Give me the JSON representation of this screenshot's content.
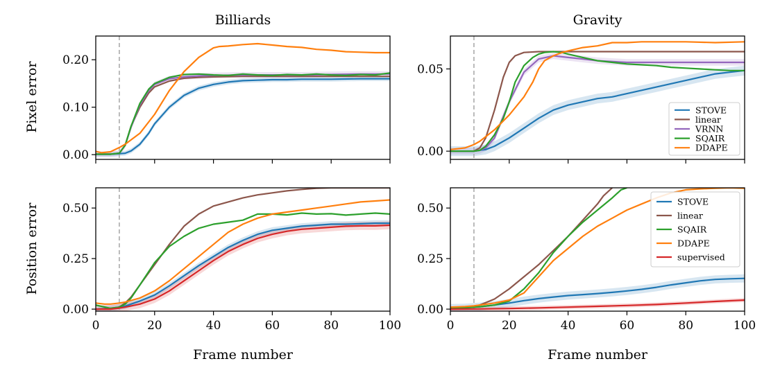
{
  "figure": {
    "col_titles": [
      "Billiards",
      "Gravity"
    ],
    "xlabel": "Frame number",
    "ylabels": [
      "Pixel error",
      "Position error"
    ]
  },
  "colors": {
    "STOVE": "#1f77b4",
    "linear": "#8c564b",
    "VRNN": "#9467bd",
    "SQAIR": "#2ca02c",
    "DDAPE": "#ff7f0e",
    "supervised": "#d62728",
    "marker": "#aaaaaa"
  },
  "chart_data": [
    {
      "id": "billiards-pixel",
      "type": "line",
      "title": "Billiards",
      "xlabel": "",
      "ylabel": "Pixel error",
      "xlim": [
        0,
        100
      ],
      "ylim": [
        -0.01,
        0.25
      ],
      "xticks": [
        0,
        20,
        40,
        60,
        80,
        100
      ],
      "xtick_labels_shown": false,
      "yticks": [
        0.0,
        0.1,
        0.2
      ],
      "ytick_labels": [
        "0.00",
        "0.10",
        "0.20"
      ],
      "vline_x": 8,
      "legend": null,
      "series": [
        {
          "name": "STOVE",
          "band": 0.005,
          "x": [
            0,
            5,
            8,
            10,
            12,
            15,
            18,
            20,
            25,
            30,
            35,
            40,
            45,
            50,
            55,
            60,
            65,
            70,
            80,
            90,
            100
          ],
          "y": [
            0.001,
            0.001,
            0.002,
            0.003,
            0.008,
            0.022,
            0.045,
            0.065,
            0.1,
            0.125,
            0.14,
            0.148,
            0.153,
            0.156,
            0.157,
            0.158,
            0.158,
            0.159,
            0.159,
            0.16,
            0.16
          ]
        },
        {
          "name": "linear",
          "x": [
            0,
            5,
            8,
            10,
            12,
            15,
            18,
            20,
            25,
            30,
            35,
            40,
            50,
            60,
            70,
            80,
            90,
            100
          ],
          "y": [
            0.001,
            0.001,
            0.003,
            0.02,
            0.06,
            0.1,
            0.13,
            0.143,
            0.155,
            0.161,
            0.163,
            0.164,
            0.165,
            0.165,
            0.165,
            0.165,
            0.165,
            0.165
          ]
        },
        {
          "name": "VRNN",
          "band": 0.006,
          "x": [
            0,
            5,
            8,
            10,
            12,
            15,
            18,
            20,
            25,
            30,
            35,
            40,
            50,
            60,
            70,
            80,
            90,
            100
          ],
          "y": [
            0.001,
            0.001,
            0.003,
            0.02,
            0.058,
            0.105,
            0.135,
            0.148,
            0.16,
            0.164,
            0.166,
            0.167,
            0.168,
            0.168,
            0.168,
            0.169,
            0.17,
            0.17
          ]
        },
        {
          "name": "SQAIR",
          "x": [
            0,
            5,
            8,
            10,
            12,
            15,
            18,
            20,
            25,
            30,
            35,
            40,
            45,
            50,
            55,
            60,
            65,
            70,
            75,
            80,
            85,
            90,
            95,
            100
          ],
          "y": [
            0.001,
            0.001,
            0.003,
            0.02,
            0.06,
            0.108,
            0.138,
            0.15,
            0.163,
            0.169,
            0.17,
            0.168,
            0.167,
            0.17,
            0.168,
            0.167,
            0.169,
            0.168,
            0.17,
            0.168,
            0.167,
            0.169,
            0.168,
            0.172
          ]
        },
        {
          "name": "DDAPE",
          "x": [
            0,
            2,
            5,
            8,
            10,
            15,
            20,
            25,
            30,
            35,
            40,
            42,
            45,
            50,
            55,
            60,
            65,
            70,
            75,
            80,
            85,
            90,
            95,
            100
          ],
          "y": [
            0.007,
            0.004,
            0.006,
            0.015,
            0.022,
            0.045,
            0.085,
            0.135,
            0.175,
            0.205,
            0.225,
            0.228,
            0.229,
            0.232,
            0.234,
            0.231,
            0.228,
            0.226,
            0.222,
            0.22,
            0.217,
            0.216,
            0.215,
            0.215
          ]
        }
      ]
    },
    {
      "id": "gravity-pixel",
      "type": "line",
      "title": "Gravity",
      "xlabel": "",
      "ylabel": "",
      "xlim": [
        0,
        100
      ],
      "ylim": [
        -0.005,
        0.07
      ],
      "xticks": [
        0,
        20,
        40,
        60,
        80,
        100
      ],
      "xtick_labels_shown": false,
      "yticks": [
        0.0,
        0.05
      ],
      "ytick_labels": [
        "0.00",
        "0.05"
      ],
      "vline_x": 8,
      "legend": {
        "placement": "lower-right",
        "entries": [
          "STOVE",
          "linear",
          "VRNN",
          "SQAIR",
          "DDAPE"
        ]
      },
      "series": [
        {
          "name": "STOVE",
          "band": 0.003,
          "x": [
            0,
            5,
            8,
            10,
            12,
            15,
            20,
            25,
            30,
            35,
            40,
            45,
            50,
            55,
            60,
            65,
            70,
            75,
            80,
            85,
            90,
            95,
            100
          ],
          "y": [
            0.0,
            0.0,
            0.0,
            0.0005,
            0.001,
            0.003,
            0.008,
            0.014,
            0.02,
            0.025,
            0.028,
            0.03,
            0.032,
            0.033,
            0.035,
            0.037,
            0.039,
            0.041,
            0.043,
            0.045,
            0.047,
            0.048,
            0.049
          ]
        },
        {
          "name": "linear",
          "x": [
            0,
            5,
            8,
            10,
            12,
            15,
            18,
            20,
            22,
            25,
            30,
            35,
            40,
            50,
            60,
            70,
            80,
            90,
            100
          ],
          "y": [
            0.0,
            0.0,
            0.0,
            0.002,
            0.008,
            0.025,
            0.045,
            0.054,
            0.058,
            0.06,
            0.0605,
            0.0605,
            0.0605,
            0.0605,
            0.0605,
            0.0605,
            0.0605,
            0.0605,
            0.0605
          ]
        },
        {
          "name": "VRNN",
          "band": 0.002,
          "x": [
            0,
            5,
            8,
            10,
            12,
            15,
            20,
            25,
            30,
            35,
            40,
            45,
            50,
            60,
            70,
            80,
            90,
            100
          ],
          "y": [
            0.0,
            0.0,
            0.0,
            0.0005,
            0.002,
            0.008,
            0.03,
            0.048,
            0.056,
            0.058,
            0.057,
            0.056,
            0.055,
            0.054,
            0.054,
            0.054,
            0.054,
            0.054
          ]
        },
        {
          "name": "SQAIR",
          "x": [
            0,
            5,
            8,
            10,
            12,
            15,
            18,
            20,
            22,
            25,
            28,
            30,
            32,
            35,
            38,
            40,
            45,
            50,
            55,
            60,
            65,
            70,
            75,
            80,
            85,
            90,
            95,
            100
          ],
          "y": [
            0.0,
            0.0,
            0.0,
            0.0005,
            0.003,
            0.01,
            0.02,
            0.03,
            0.042,
            0.052,
            0.057,
            0.059,
            0.06,
            0.0605,
            0.06,
            0.059,
            0.057,
            0.055,
            0.054,
            0.053,
            0.0525,
            0.052,
            0.051,
            0.0505,
            0.05,
            0.0495,
            0.049,
            0.049
          ]
        },
        {
          "name": "DDAPE",
          "x": [
            0,
            5,
            8,
            10,
            15,
            20,
            25,
            28,
            30,
            32,
            35,
            38,
            40,
            45,
            50,
            55,
            60,
            65,
            70,
            80,
            90,
            100
          ],
          "y": [
            0.001,
            0.002,
            0.004,
            0.006,
            0.013,
            0.022,
            0.033,
            0.042,
            0.05,
            0.055,
            0.058,
            0.06,
            0.061,
            0.063,
            0.064,
            0.066,
            0.066,
            0.0665,
            0.0665,
            0.0665,
            0.066,
            0.0665
          ]
        }
      ]
    },
    {
      "id": "billiards-position",
      "type": "line",
      "title": "",
      "xlabel": "Frame number",
      "ylabel": "Position error",
      "xlim": [
        0,
        100
      ],
      "ylim": [
        -0.01,
        0.6
      ],
      "xticks": [
        0,
        20,
        40,
        60,
        80,
        100
      ],
      "xtick_labels": [
        "0",
        "20",
        "40",
        "60",
        "80",
        "100"
      ],
      "xtick_labels_shown": true,
      "yticks": [
        0.0,
        0.25,
        0.5
      ],
      "ytick_labels": [
        "0.00",
        "0.25",
        "0.50"
      ],
      "vline_x": 8,
      "legend": null,
      "series": [
        {
          "name": "STOVE",
          "band": 0.015,
          "x": [
            0,
            5,
            8,
            10,
            15,
            20,
            25,
            30,
            35,
            40,
            45,
            50,
            55,
            60,
            65,
            70,
            75,
            80,
            85,
            90,
            95,
            100
          ],
          "y": [
            0.0,
            0.004,
            0.01,
            0.015,
            0.04,
            0.07,
            0.115,
            0.165,
            0.215,
            0.26,
            0.305,
            0.34,
            0.37,
            0.39,
            0.4,
            0.41,
            0.415,
            0.42,
            0.42,
            0.422,
            0.425,
            0.425
          ]
        },
        {
          "name": "linear",
          "x": [
            0,
            5,
            8,
            10,
            12,
            15,
            20,
            25,
            30,
            35,
            40,
            45,
            50,
            55,
            60,
            65,
            70,
            75,
            80,
            85,
            90,
            95,
            100
          ],
          "y": [
            0.0,
            0.002,
            0.01,
            0.03,
            0.06,
            0.12,
            0.22,
            0.32,
            0.41,
            0.47,
            0.51,
            0.53,
            0.55,
            0.565,
            0.575,
            0.585,
            0.592,
            0.598,
            0.6,
            0.6,
            0.6,
            0.6,
            0.6
          ]
        },
        {
          "name": "SQAIR",
          "x": [
            0,
            5,
            8,
            10,
            12,
            15,
            20,
            25,
            30,
            35,
            40,
            45,
            50,
            55,
            60,
            65,
            70,
            75,
            80,
            85,
            90,
            95,
            100
          ],
          "y": [
            0.02,
            0.004,
            0.01,
            0.025,
            0.055,
            0.12,
            0.23,
            0.31,
            0.36,
            0.4,
            0.42,
            0.43,
            0.44,
            0.47,
            0.47,
            0.466,
            0.475,
            0.47,
            0.472,
            0.465,
            0.47,
            0.475,
            0.47
          ]
        },
        {
          "name": "DDAPE",
          "x": [
            0,
            3,
            5,
            8,
            10,
            15,
            20,
            25,
            30,
            35,
            40,
            45,
            50,
            55,
            60,
            65,
            70,
            75,
            80,
            85,
            90,
            95,
            100
          ],
          "y": [
            0.03,
            0.025,
            0.025,
            0.03,
            0.035,
            0.055,
            0.09,
            0.14,
            0.2,
            0.26,
            0.32,
            0.38,
            0.42,
            0.45,
            0.47,
            0.48,
            0.49,
            0.5,
            0.51,
            0.52,
            0.53,
            0.535,
            0.54
          ]
        },
        {
          "name": "supervised",
          "band": 0.02,
          "x": [
            0,
            5,
            8,
            10,
            15,
            20,
            25,
            30,
            35,
            40,
            45,
            50,
            55,
            60,
            65,
            70,
            75,
            80,
            85,
            90,
            95,
            100
          ],
          "y": [
            0.0,
            0.0,
            0.005,
            0.01,
            0.025,
            0.05,
            0.09,
            0.14,
            0.19,
            0.24,
            0.285,
            0.32,
            0.35,
            0.37,
            0.385,
            0.395,
            0.4,
            0.405,
            0.41,
            0.412,
            0.412,
            0.415
          ]
        }
      ]
    },
    {
      "id": "gravity-position",
      "type": "line",
      "title": "",
      "xlabel": "Frame number",
      "ylabel": "",
      "xlim": [
        0,
        100
      ],
      "ylim": [
        -0.01,
        0.6
      ],
      "xticks": [
        0,
        20,
        40,
        60,
        80,
        100
      ],
      "xtick_labels": [
        "0",
        "20",
        "40",
        "60",
        "80",
        "100"
      ],
      "xtick_labels_shown": true,
      "yticks": [
        0.0,
        0.25,
        0.5
      ],
      "ytick_labels": [
        "0.00",
        "0.25",
        "0.50"
      ],
      "vline_x": 8,
      "legend": {
        "placement": "upper-right",
        "entries": [
          "STOVE",
          "linear",
          "SQAIR",
          "DDAPE",
          "supervised"
        ]
      },
      "series": [
        {
          "name": "STOVE",
          "band": 0.02,
          "x": [
            0,
            5,
            8,
            10,
            15,
            20,
            25,
            30,
            35,
            40,
            45,
            50,
            55,
            60,
            65,
            70,
            75,
            80,
            85,
            90,
            95,
            100
          ],
          "y": [
            0.005,
            0.007,
            0.01,
            0.012,
            0.02,
            0.03,
            0.042,
            0.052,
            0.06,
            0.067,
            0.072,
            0.077,
            0.083,
            0.09,
            0.098,
            0.108,
            0.12,
            0.13,
            0.14,
            0.147,
            0.15,
            0.152
          ]
        },
        {
          "name": "linear",
          "x": [
            0,
            5,
            8,
            10,
            15,
            20,
            25,
            30,
            35,
            40,
            45,
            50,
            52,
            55
          ],
          "y": [
            0.005,
            0.01,
            0.015,
            0.02,
            0.05,
            0.1,
            0.16,
            0.22,
            0.29,
            0.36,
            0.44,
            0.52,
            0.56,
            0.6
          ]
        },
        {
          "name": "SQAIR",
          "x": [
            0,
            5,
            8,
            10,
            15,
            20,
            25,
            30,
            35,
            40,
            45,
            50,
            55,
            58,
            60
          ],
          "y": [
            0.005,
            0.007,
            0.01,
            0.012,
            0.02,
            0.04,
            0.1,
            0.18,
            0.28,
            0.36,
            0.43,
            0.49,
            0.55,
            0.59,
            0.6
          ]
        },
        {
          "name": "DDAPE",
          "x": [
            0,
            5,
            8,
            10,
            15,
            20,
            25,
            30,
            35,
            40,
            45,
            50,
            55,
            60,
            65,
            70,
            75,
            80,
            85,
            90,
            95,
            100
          ],
          "y": [
            0.01,
            0.013,
            0.016,
            0.02,
            0.03,
            0.045,
            0.08,
            0.16,
            0.24,
            0.3,
            0.36,
            0.41,
            0.45,
            0.49,
            0.52,
            0.55,
            0.575,
            0.59,
            0.595,
            0.598,
            0.6,
            0.598
          ]
        },
        {
          "name": "supervised",
          "band": 0.01,
          "x": [
            0,
            10,
            20,
            30,
            40,
            50,
            60,
            70,
            80,
            90,
            100
          ],
          "y": [
            0.0,
            0.001,
            0.003,
            0.006,
            0.01,
            0.014,
            0.018,
            0.023,
            0.03,
            0.038,
            0.045
          ]
        }
      ]
    }
  ]
}
